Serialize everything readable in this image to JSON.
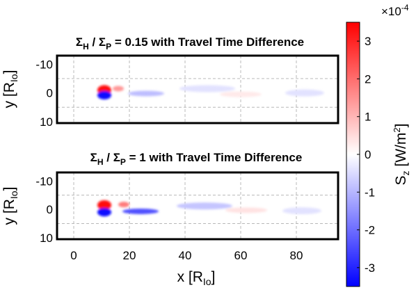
{
  "chart_data": {
    "type": "heatmap",
    "panels": [
      {
        "title_parts": {
          "sym1": "Σ",
          "sub1": "H",
          "sep": " / ",
          "sym2": "Σ",
          "sub2": "P",
          "rest": " = 0.15 with Travel Time Difference"
        },
        "ylabel_parts": {
          "main": "y [R",
          "sub": "Io",
          "close": "]"
        },
        "xlim": [
          -6,
          95
        ],
        "ylim": [
          -13,
          10.5
        ],
        "yticks": [
          "-10",
          "0",
          "10"
        ],
        "ytick_values": [
          -10,
          0,
          10
        ],
        "features": [
          {
            "x": 11,
            "y": -1,
            "value": 3.4
          },
          {
            "x": 16,
            "y": -1.5,
            "value": 1.4
          },
          {
            "x": 11,
            "y": 0.8,
            "value": -3.4
          },
          {
            "x": 26,
            "y": 0.2,
            "value": -0.9
          },
          {
            "x": 48,
            "y": -1.5,
            "value": -0.4
          },
          {
            "x": 60,
            "y": 0.5,
            "value": 0.3
          },
          {
            "x": 83,
            "y": 0,
            "value": -0.4
          }
        ]
      },
      {
        "title_parts": {
          "sym1": "Σ",
          "sub1": "H",
          "sep": " / ",
          "sym2": "Σ",
          "sub2": "P",
          "rest": " = 1 with Travel Time Difference"
        },
        "ylabel_parts": {
          "main": "y [R",
          "sub": "Io",
          "close": "]"
        },
        "xlim": [
          -6,
          95
        ],
        "ylim": [
          -13,
          10.5
        ],
        "yticks": [
          "-10",
          "0",
          "10"
        ],
        "ytick_values": [
          -10,
          0,
          10
        ],
        "features": [
          {
            "x": 11,
            "y": -1.5,
            "value": 3.4
          },
          {
            "x": 18,
            "y": -1.7,
            "value": 1.8
          },
          {
            "x": 11,
            "y": 1,
            "value": -3.4
          },
          {
            "x": 24,
            "y": 0.7,
            "value": -2.4
          },
          {
            "x": 47,
            "y": -1.2,
            "value": -0.8
          },
          {
            "x": 62,
            "y": 0.3,
            "value": 0.4
          },
          {
            "x": 82,
            "y": 0.5,
            "value": -0.4
          }
        ]
      }
    ],
    "xticks": [
      "0",
      "20",
      "40",
      "60",
      "80"
    ],
    "xtick_values": [
      0,
      20,
      40,
      60,
      80
    ],
    "xlabel_parts": {
      "main": "x [R",
      "sub": "Io",
      "close": "]"
    },
    "colorbar": {
      "range": [
        -3.5,
        3.5
      ],
      "ticks": [
        "-3",
        "-2",
        "-1",
        "0",
        "1",
        "2",
        "3"
      ],
      "tick_values": [
        -3,
        -2,
        -1,
        0,
        1,
        2,
        3
      ],
      "multiplier": {
        "base": "×10",
        "exp": "-4"
      },
      "label_parts": {
        "s": "S",
        "sub": "z",
        "unit_open": " [W/m",
        "sup": "2",
        "unit_close": "]"
      },
      "colormap": {
        "negative": "#0000ff",
        "zero": "#ffffff",
        "positive": "#ff0000"
      }
    }
  }
}
